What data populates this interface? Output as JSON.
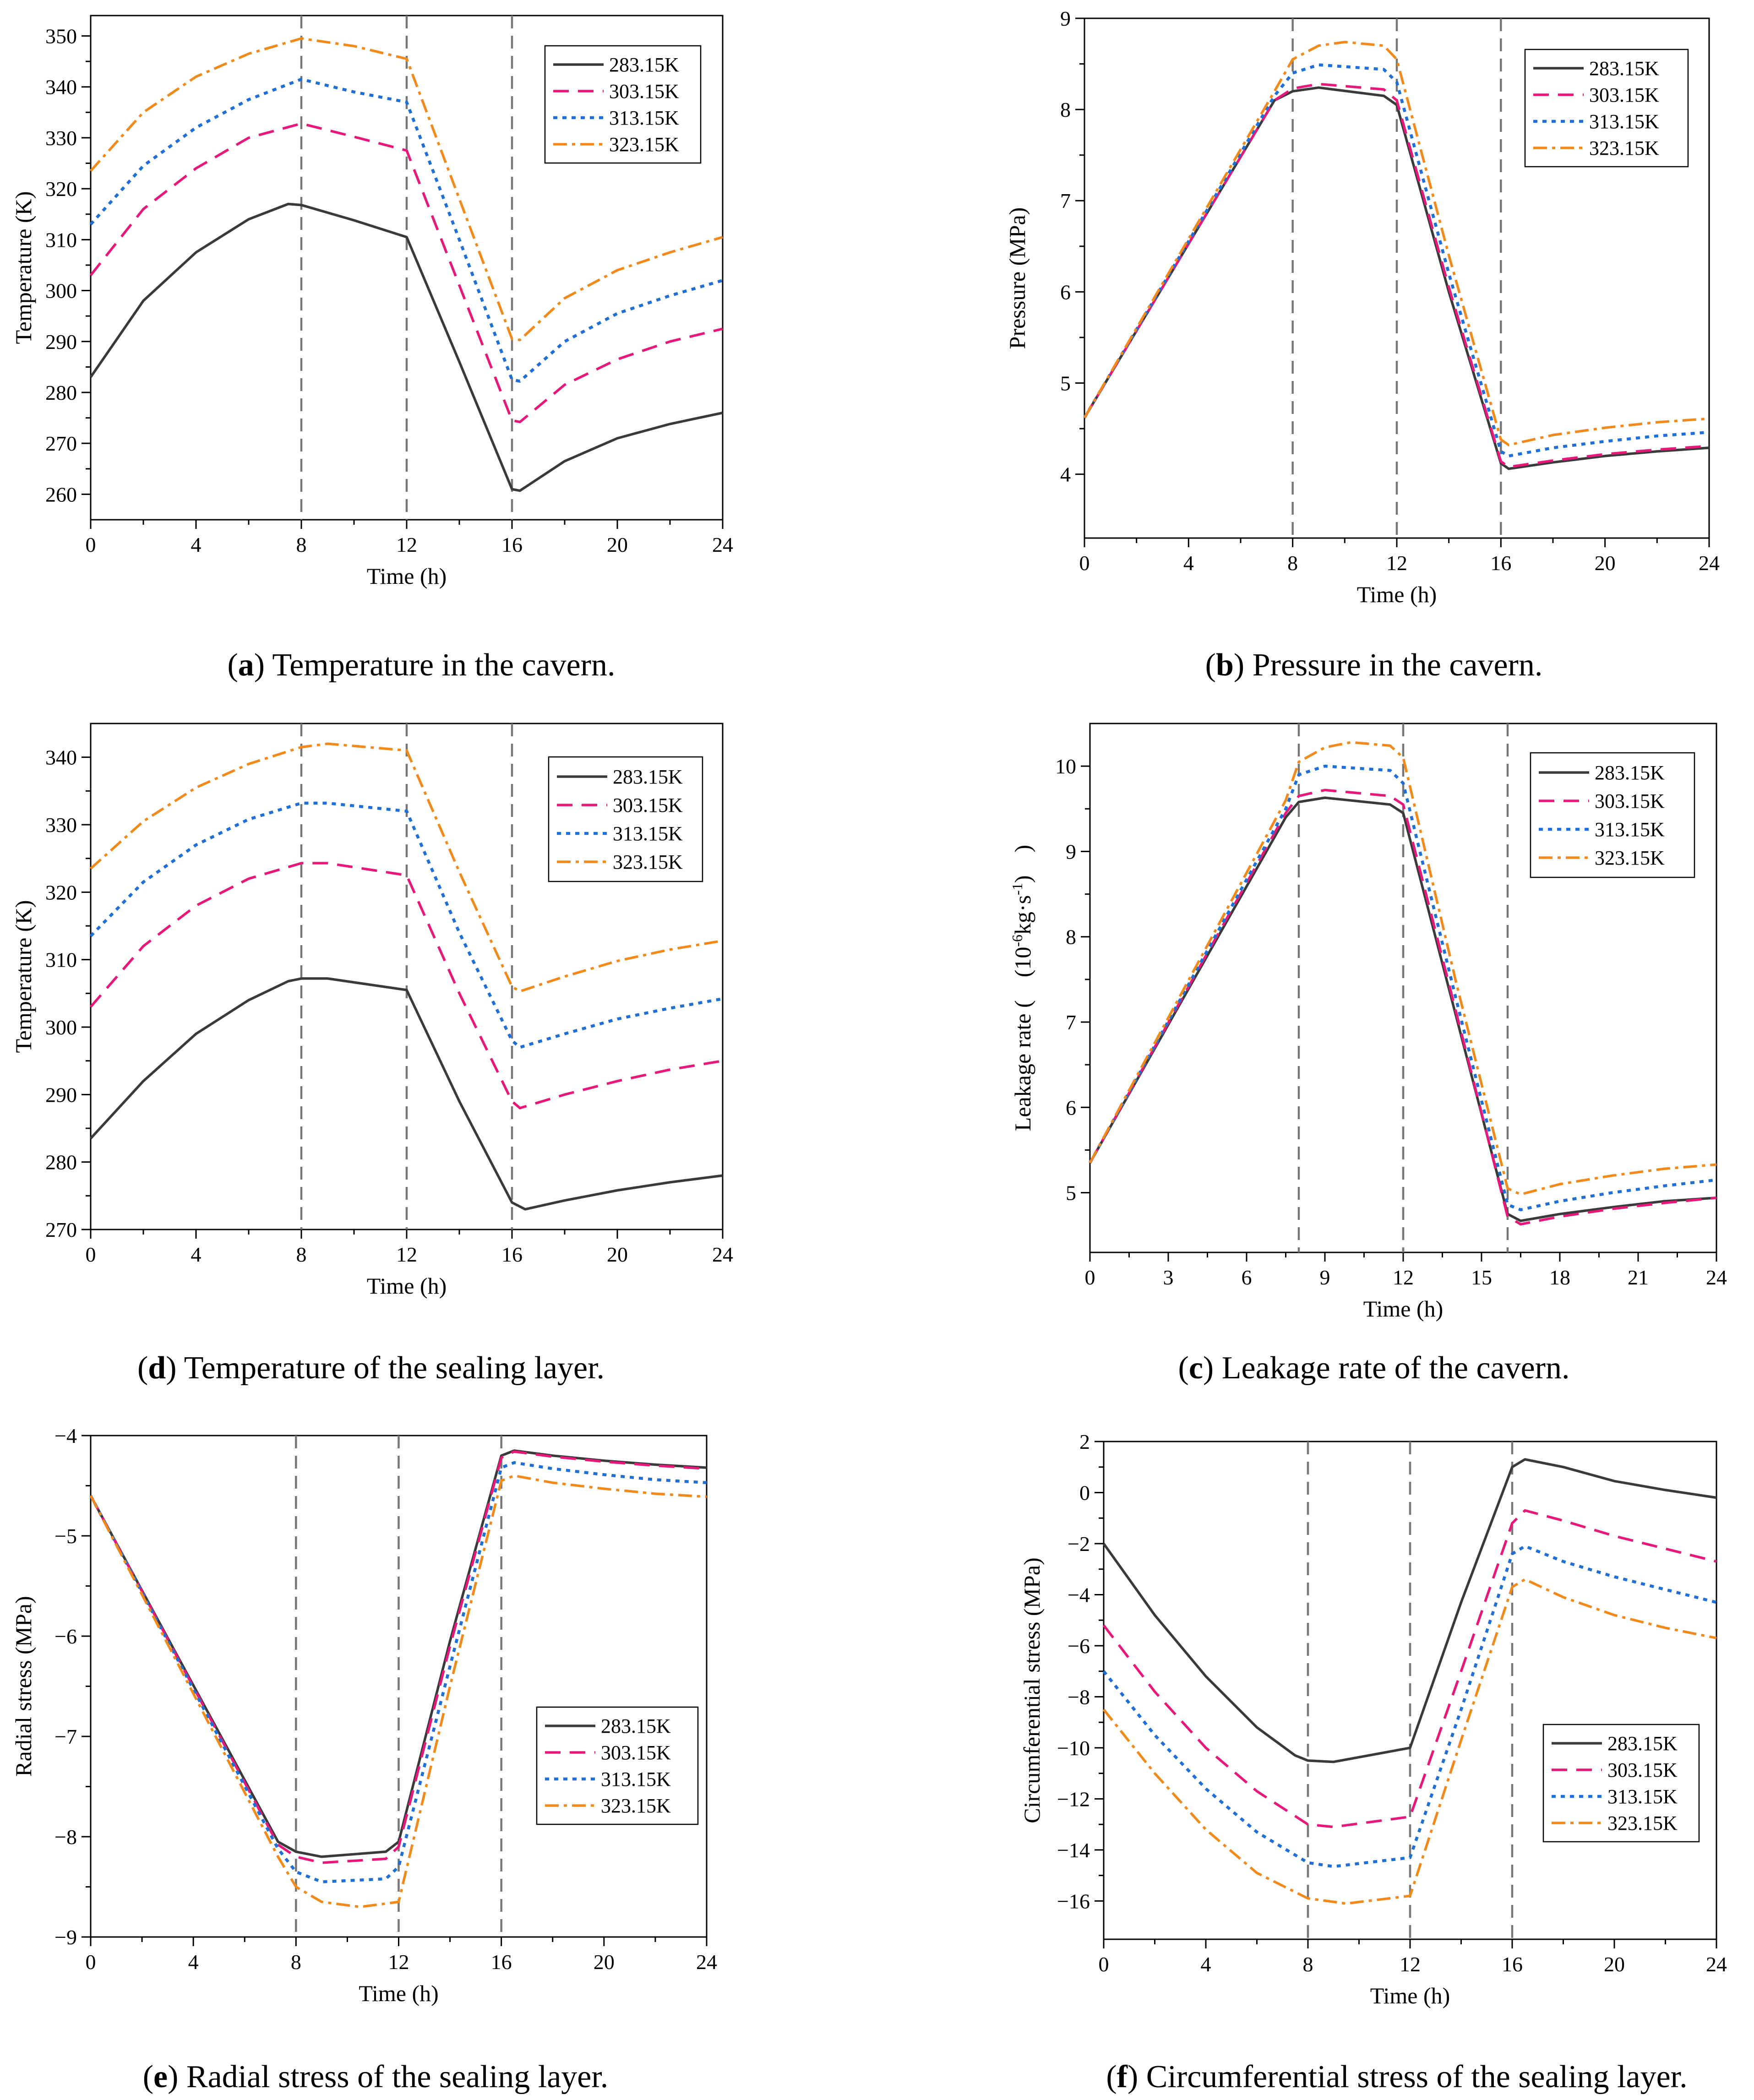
{
  "colors": {
    "s283": "#3a3a3a",
    "s303": "#e8177a",
    "s313": "#1f6fd6",
    "s323": "#f28a1b",
    "guide": "#777777",
    "axis": "#000000"
  },
  "legend_labels": [
    "283.15K",
    "303.15K",
    "313.15K",
    "323.15K"
  ],
  "chart_data": [
    {
      "id": "a",
      "type": "line",
      "caption_letter": "a",
      "caption_text": ") Temperature in the cavern.",
      "xlabel": "Time (h)",
      "ylabel": "Temperature (K)",
      "xlim": [
        0,
        24
      ],
      "ylim": [
        255,
        354
      ],
      "xticks": [
        0,
        4,
        8,
        12,
        16,
        20,
        24
      ],
      "xtick_labels": [
        "0",
        "4",
        "8",
        "12",
        "16",
        "20",
        "24"
      ],
      "yticks": [
        260,
        270,
        280,
        290,
        300,
        310,
        320,
        330,
        340,
        350
      ],
      "ytick_labels": [
        "260",
        "270",
        "280",
        "290",
        "300",
        "310",
        "320",
        "330",
        "340",
        "350"
      ],
      "guides": [
        8,
        12,
        16
      ],
      "legend_position": "top-right",
      "series": [
        {
          "name": "283.15K",
          "x": [
            0,
            2,
            4,
            6,
            7.5,
            8,
            10,
            12,
            14,
            16,
            16.3,
            18,
            20,
            22,
            24
          ],
          "y": [
            283,
            298,
            307.5,
            314,
            317,
            316.8,
            313.8,
            310.5,
            286,
            261,
            260.7,
            266.5,
            271,
            273.8,
            276
          ]
        },
        {
          "name": "303.15K",
          "x": [
            0,
            2,
            4,
            6,
            8,
            10,
            12,
            14,
            16,
            16.3,
            18,
            20,
            22,
            24
          ],
          "y": [
            303,
            316,
            324,
            330,
            332.8,
            330.2,
            327.5,
            301,
            274.5,
            274.2,
            281.5,
            286.5,
            290,
            292.5
          ]
        },
        {
          "name": "313.15K",
          "x": [
            0,
            2,
            4,
            6,
            8,
            10,
            12,
            14,
            16,
            16.3,
            18,
            20,
            22,
            24
          ],
          "y": [
            313,
            324.5,
            332,
            337.5,
            341.5,
            339,
            337,
            310,
            282.5,
            282.2,
            290,
            295.5,
            299,
            302
          ]
        },
        {
          "name": "323.15K",
          "x": [
            0,
            2,
            4,
            6,
            8,
            10,
            12,
            14,
            16,
            16.3,
            18,
            20,
            22,
            24
          ],
          "y": [
            323.5,
            335,
            342,
            346.5,
            349.5,
            348,
            345.5,
            318,
            290.5,
            290.3,
            298.5,
            304,
            307.5,
            310.5
          ]
        }
      ]
    },
    {
      "id": "b",
      "type": "line",
      "caption_letter": "b",
      "caption_text": ") Pressure in the cavern.",
      "xlabel": "Time (h)",
      "ylabel": "Pressure (MPa)",
      "xlim": [
        0,
        24
      ],
      "ylim": [
        3.3,
        9
      ],
      "xticks": [
        0,
        4,
        8,
        12,
        16,
        20,
        24
      ],
      "xtick_labels": [
        "0",
        "4",
        "8",
        "12",
        "16",
        "20",
        "24"
      ],
      "yticks": [
        4,
        5,
        6,
        7,
        8,
        9
      ],
      "ytick_labels": [
        "4",
        "5",
        "6",
        "7",
        "8",
        "9"
      ],
      "guides": [
        8,
        12,
        16
      ],
      "legend_position": "top-right",
      "series": [
        {
          "name": "283.15K",
          "x": [
            0,
            7.3,
            8,
            9,
            11.5,
            12,
            14,
            16,
            16.3,
            18,
            20,
            22,
            24
          ],
          "y": [
            4.62,
            8.1,
            8.2,
            8.24,
            8.15,
            8.05,
            6.0,
            4.12,
            4.06,
            4.13,
            4.2,
            4.25,
            4.29
          ]
        },
        {
          "name": "303.15K",
          "x": [
            0,
            7.3,
            8,
            9,
            11.5,
            12,
            14,
            16,
            16.3,
            18,
            20,
            22,
            24
          ],
          "y": [
            4.62,
            8.1,
            8.23,
            8.28,
            8.22,
            8.1,
            6.05,
            4.14,
            4.08,
            4.15,
            4.22,
            4.27,
            4.31
          ]
        },
        {
          "name": "313.15K",
          "x": [
            0,
            7.3,
            8,
            9,
            11.5,
            12,
            14,
            16,
            16.3,
            18,
            20,
            22,
            24
          ],
          "y": [
            4.62,
            8.15,
            8.4,
            8.49,
            8.44,
            8.3,
            6.2,
            4.25,
            4.2,
            4.29,
            4.36,
            4.42,
            4.46
          ]
        },
        {
          "name": "323.15K",
          "x": [
            0,
            7.3,
            8,
            9,
            10,
            11.5,
            12,
            14,
            16,
            16.3,
            18,
            20,
            22,
            24
          ],
          "y": [
            4.62,
            8.2,
            8.55,
            8.7,
            8.74,
            8.7,
            8.55,
            6.4,
            4.38,
            4.32,
            4.43,
            4.51,
            4.57,
            4.61
          ]
        }
      ]
    },
    {
      "id": "d",
      "type": "line",
      "caption_letter": "d",
      "caption_text": ") Temperature of the sealing layer.",
      "xlabel": "Time (h)",
      "ylabel": "Temperature (K)",
      "xlim": [
        0,
        24
      ],
      "ylim": [
        270,
        345
      ],
      "xticks": [
        0,
        4,
        8,
        12,
        16,
        20,
        24
      ],
      "xtick_labels": [
        "0",
        "4",
        "8",
        "12",
        "16",
        "20",
        "24"
      ],
      "yticks": [
        270,
        280,
        290,
        300,
        310,
        320,
        330,
        340
      ],
      "ytick_labels": [
        "270",
        "280",
        "290",
        "300",
        "310",
        "320",
        "330",
        "340"
      ],
      "guides": [
        8,
        12,
        16
      ],
      "legend_position": "top-right",
      "series": [
        {
          "name": "283.15K",
          "x": [
            0,
            2,
            4,
            6,
            7.5,
            8,
            9,
            12,
            14,
            16,
            16.5,
            18,
            20,
            22,
            24
          ],
          "y": [
            283.5,
            292,
            299,
            304,
            306.8,
            307.2,
            307.2,
            305.5,
            289,
            274,
            273,
            274.3,
            275.8,
            277,
            278
          ]
        },
        {
          "name": "303.15K",
          "x": [
            0,
            2,
            4,
            6,
            8,
            9,
            12,
            14,
            16,
            16.3,
            18,
            20,
            22,
            24
          ],
          "y": [
            303,
            312,
            318,
            322,
            324.3,
            324.3,
            322.5,
            305,
            289,
            288,
            290,
            292,
            293.7,
            295
          ]
        },
        {
          "name": "313.15K",
          "x": [
            0,
            2,
            4,
            6,
            8,
            9,
            12,
            14,
            16,
            16.3,
            18,
            20,
            22,
            24
          ],
          "y": [
            313.5,
            321.5,
            327,
            330.8,
            333.2,
            333.2,
            332,
            314,
            298,
            297,
            299,
            301.2,
            302.8,
            304.2
          ]
        },
        {
          "name": "323.15K",
          "x": [
            0,
            2,
            4,
            6,
            8,
            9,
            12,
            14,
            16,
            16.3,
            18,
            20,
            22,
            24
          ],
          "y": [
            323.5,
            330.5,
            335.5,
            339,
            341.5,
            342,
            341,
            323,
            306,
            305.3,
            307.5,
            309.8,
            311.5,
            312.8
          ]
        }
      ]
    },
    {
      "id": "c",
      "type": "line",
      "caption_letter": "c",
      "caption_text": ") Leakage rate of the cavern.",
      "xlabel": "Time (h)",
      "ylabel_prefix": "Leakage rate (　(10",
      "ylabel_sup1": "-6",
      "ylabel_mid": "kg·s",
      "ylabel_sup2": "-1",
      "ylabel_suffix": ")　)",
      "xlim": [
        0,
        24
      ],
      "ylim": [
        4.3,
        10.5
      ],
      "xticks": [
        0,
        3,
        6,
        9,
        12,
        15,
        18,
        21,
        24
      ],
      "xtick_labels": [
        "0",
        "3",
        "6",
        "9",
        "12",
        "15",
        "18",
        "21",
        "24"
      ],
      "yticks": [
        5,
        6,
        7,
        8,
        9,
        10
      ],
      "ytick_labels": [
        "5",
        "6",
        "7",
        "8",
        "9",
        "10"
      ],
      "guides": [
        8,
        12,
        16
      ],
      "legend_position": "top-right",
      "series": [
        {
          "name": "283.15K",
          "x": [
            0,
            7.5,
            8,
            9,
            11.5,
            12,
            14,
            16,
            16.5,
            18,
            20,
            22,
            24
          ],
          "y": [
            5.35,
            9.4,
            9.58,
            9.63,
            9.55,
            9.45,
            7.1,
            4.75,
            4.67,
            4.75,
            4.83,
            4.9,
            4.94
          ]
        },
        {
          "name": "303.15K",
          "x": [
            0,
            7.5,
            8,
            9,
            11.5,
            12,
            14,
            16,
            16.5,
            18,
            20,
            22,
            24
          ],
          "y": [
            5.35,
            9.45,
            9.65,
            9.72,
            9.65,
            9.55,
            7.15,
            4.72,
            4.63,
            4.72,
            4.81,
            4.88,
            4.94
          ]
        },
        {
          "name": "313.15K",
          "x": [
            0,
            7.5,
            8,
            9,
            11.5,
            12,
            14,
            16,
            16.5,
            18,
            20,
            22,
            24
          ],
          "y": [
            5.35,
            9.5,
            9.9,
            10.0,
            9.95,
            9.8,
            7.3,
            4.86,
            4.8,
            4.9,
            5.0,
            5.08,
            5.15
          ]
        },
        {
          "name": "323.15K",
          "x": [
            0,
            7.5,
            8,
            9,
            10,
            11.5,
            12,
            14,
            16,
            16.5,
            18,
            20,
            22,
            24
          ],
          "y": [
            5.35,
            9.6,
            10.05,
            10.22,
            10.28,
            10.24,
            10.1,
            7.5,
            5.05,
            4.98,
            5.1,
            5.2,
            5.28,
            5.33
          ]
        }
      ]
    },
    {
      "id": "e",
      "type": "line",
      "caption_letter": "e",
      "caption_text": ") Radial stress of the sealing layer.",
      "xlabel": "Time (h)",
      "ylabel": "Radial stress (MPa)",
      "xlim": [
        0,
        24
      ],
      "ylim": [
        -9,
        -4
      ],
      "xticks": [
        0,
        4,
        8,
        12,
        16,
        20,
        24
      ],
      "xtick_labels": [
        "0",
        "4",
        "8",
        "12",
        "16",
        "20",
        "24"
      ],
      "yticks": [
        -9,
        -8,
        -7,
        -6,
        -5,
        -4
      ],
      "ytick_labels": [
        "−9",
        "−8",
        "−7",
        "−6",
        "−5",
        "−4"
      ],
      "guides": [
        8,
        12,
        16
      ],
      "legend_position": "center-right",
      "series": [
        {
          "name": "283.15K",
          "x": [
            0,
            7.3,
            8,
            9,
            11.5,
            12,
            14,
            16,
            16.5,
            18,
            20,
            22,
            24
          ],
          "y": [
            -4.6,
            -8.05,
            -8.15,
            -8.2,
            -8.15,
            -8.05,
            -6.05,
            -4.2,
            -4.15,
            -4.2,
            -4.25,
            -4.29,
            -4.32
          ]
        },
        {
          "name": "303.15K",
          "x": [
            0,
            7.3,
            8,
            9,
            11.5,
            12,
            14,
            16,
            16.5,
            18,
            20,
            22,
            24
          ],
          "y": [
            -4.6,
            -8.08,
            -8.2,
            -8.26,
            -8.22,
            -8.1,
            -6.1,
            -4.22,
            -4.16,
            -4.21,
            -4.26,
            -4.3,
            -4.33
          ]
        },
        {
          "name": "313.15K",
          "x": [
            0,
            7.3,
            8,
            9,
            11.5,
            12,
            14,
            16,
            16.5,
            18,
            20,
            22,
            24
          ],
          "y": [
            -4.6,
            -8.12,
            -8.35,
            -8.45,
            -8.42,
            -8.3,
            -6.3,
            -4.32,
            -4.27,
            -4.33,
            -4.39,
            -4.44,
            -4.47
          ]
        },
        {
          "name": "323.15K",
          "x": [
            0,
            7.3,
            8,
            9,
            10.5,
            12,
            14,
            16,
            16.5,
            18,
            20,
            22,
            24
          ],
          "y": [
            -4.6,
            -8.2,
            -8.5,
            -8.65,
            -8.7,
            -8.65,
            -6.5,
            -4.45,
            -4.4,
            -4.47,
            -4.53,
            -4.58,
            -4.61
          ]
        }
      ]
    },
    {
      "id": "f",
      "type": "line",
      "caption_letter": "f",
      "caption_text": ") Circumferential stress of the sealing layer.",
      "xlabel": "Time (h)",
      "ylabel": "Circumferential stress (MPa)",
      "xlim": [
        0,
        24
      ],
      "ylim": [
        -17.5,
        2
      ],
      "xticks": [
        0,
        4,
        8,
        12,
        16,
        20,
        24
      ],
      "xtick_labels": [
        "0",
        "4",
        "8",
        "12",
        "16",
        "20",
        "24"
      ],
      "yticks": [
        -16,
        -14,
        -12,
        -10,
        -8,
        -6,
        -4,
        -2,
        0,
        2
      ],
      "ytick_labels": [
        "−16",
        "−14",
        "−12",
        "−10",
        "−8",
        "−6",
        "−4",
        "−2",
        "0",
        "2"
      ],
      "guides": [
        8,
        12,
        16
      ],
      "legend_position": "bottom-right",
      "series": [
        {
          "name": "283.15K",
          "x": [
            0,
            2,
            4,
            6,
            7.5,
            8,
            9,
            12,
            14,
            16,
            16.5,
            18,
            20,
            22,
            24
          ],
          "y": [
            -2,
            -4.8,
            -7.2,
            -9.2,
            -10.3,
            -10.5,
            -10.55,
            -10,
            -4.3,
            1.0,
            1.3,
            1.0,
            0.45,
            0.1,
            -0.2
          ]
        },
        {
          "name": "303.15K",
          "x": [
            0,
            2,
            4,
            6,
            8,
            9,
            12,
            14,
            16,
            16.5,
            18,
            20,
            22,
            24
          ],
          "y": [
            -5.2,
            -7.8,
            -10,
            -11.7,
            -13,
            -13.1,
            -12.7,
            -7,
            -1.2,
            -0.7,
            -1.1,
            -1.7,
            -2.2,
            -2.7
          ]
        },
        {
          "name": "313.15K",
          "x": [
            0,
            2,
            4,
            6,
            8,
            9,
            12,
            14,
            16,
            16.5,
            18,
            20,
            22,
            24
          ],
          "y": [
            -7,
            -9.5,
            -11.6,
            -13.3,
            -14.5,
            -14.65,
            -14.3,
            -8.5,
            -2.4,
            -2.1,
            -2.7,
            -3.3,
            -3.8,
            -4.3
          ]
        },
        {
          "name": "323.15K",
          "x": [
            0,
            2,
            4,
            6,
            8,
            9.5,
            12,
            14,
            16,
            16.5,
            18,
            20,
            22,
            24
          ],
          "y": [
            -8.5,
            -11,
            -13.2,
            -14.9,
            -15.9,
            -16.1,
            -15.8,
            -9.7,
            -3.7,
            -3.4,
            -4.1,
            -4.8,
            -5.3,
            -5.7
          ]
        }
      ]
    }
  ]
}
